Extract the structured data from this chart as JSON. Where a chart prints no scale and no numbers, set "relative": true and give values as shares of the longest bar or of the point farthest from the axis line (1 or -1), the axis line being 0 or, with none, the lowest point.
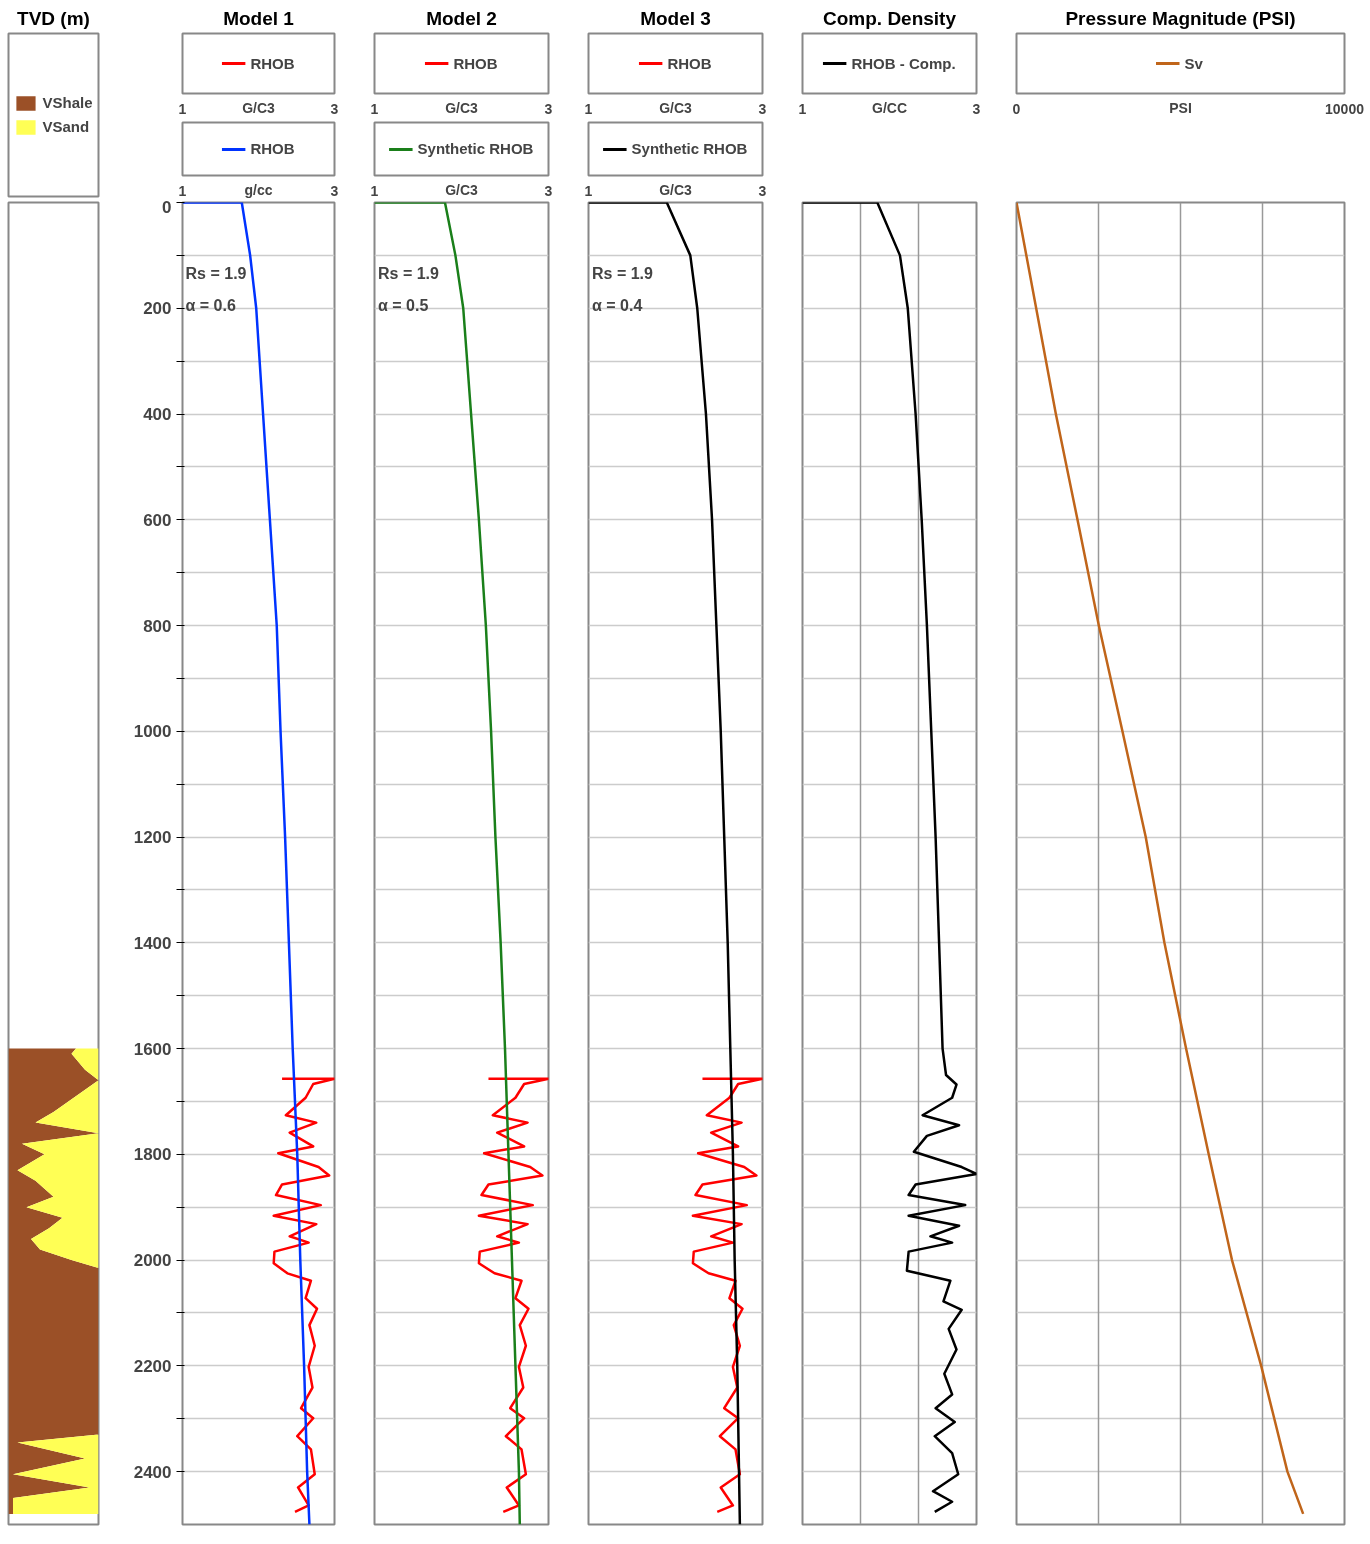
{
  "chart_data": [
    {
      "type": "area",
      "title": "TVD (m)",
      "orientation": "horizontal",
      "stacked": true,
      "relative": true,
      "ylim": [
        2500,
        0
      ],
      "tick_labels": false,
      "legend": "top",
      "series": [
        {
          "name": "VShale",
          "color": "#9b5027",
          "x": [
            1600,
            1610,
            1640,
            1660,
            1720,
            1740,
            1760,
            1780,
            1800,
            1830,
            1850,
            1880,
            1900,
            1920,
            1940,
            1960,
            1980,
            2000,
            2015,
            2330,
            2345,
            2375,
            2405,
            2430,
            2450,
            2480
          ],
          "values": [
            0.75,
            0.7,
            0.85,
            1,
            0.5,
            0.3,
            1,
            0.15,
            0.4,
            0.1,
            0.3,
            0.5,
            0.2,
            0.6,
            0.45,
            0.25,
            0.35,
            0.7,
            1,
            1,
            0.1,
            0.85,
            0.05,
            0.9,
            0.05,
            0.05
          ]
        },
        {
          "name": "VSand",
          "color": "#ffff55",
          "x": [
            1600,
            1610,
            1640,
            1660,
            1720,
            1740,
            1760,
            1780,
            1800,
            1830,
            1850,
            1880,
            1900,
            1920,
            1940,
            1960,
            1980,
            2000,
            2015,
            2330,
            2345,
            2375,
            2405,
            2430,
            2450,
            2480
          ],
          "values": [
            0.25,
            0.3,
            0.15,
            0,
            0.5,
            0.7,
            0,
            0.85,
            0.6,
            0.9,
            0.7,
            0.5,
            0.8,
            0.4,
            0.55,
            0.75,
            0.65,
            0.3,
            0,
            0,
            0.9,
            0.15,
            0.95,
            0.1,
            0.95,
            0.95
          ]
        }
      ]
    },
    {
      "type": "line",
      "title": "Model 1",
      "orientation": "horizontal",
      "xlabel": "G/C3",
      "xlim": [
        1,
        3
      ],
      "xticks": [
        1,
        3
      ],
      "x2label": "g/cc",
      "x2lim": [
        1,
        3
      ],
      "x2ticks": [
        1,
        3
      ],
      "ylim": [
        2500,
        0
      ],
      "yticks": [
        0,
        {
          "value": 100,
          "label": null
        },
        200,
        {
          "value": 300,
          "label": null
        },
        400,
        {
          "value": 500,
          "label": null
        },
        600,
        {
          "value": 700,
          "label": null
        },
        800,
        {
          "value": 900,
          "label": null
        },
        1000,
        {
          "value": 1100,
          "label": null
        },
        1200,
        {
          "value": 1300,
          "label": null
        },
        1400,
        {
          "value": 1500,
          "label": null
        },
        1600,
        {
          "value": 1700,
          "label": null
        },
        1800,
        {
          "value": 1900,
          "label": null
        },
        2000,
        {
          "value": 2100,
          "label": null
        },
        2200,
        {
          "value": 2300,
          "label": null
        },
        2400
      ],
      "grid": "y",
      "legend": "top",
      "annotations": [
        "Rs = 1.9",
        "α = 0.6"
      ],
      "series": [
        {
          "name": "RHOB",
          "color": "#ff0000",
          "values": [
            2.31,
            3.0,
            2.72,
            2.62,
            2.36,
            2.76,
            2.41,
            2.72,
            2.26,
            2.79,
            2.93,
            2.31,
            2.23,
            2.82,
            2.2,
            2.76,
            2.41,
            2.66,
            2.21,
            2.2,
            2.38,
            2.69,
            2.62,
            2.77,
            2.67,
            2.74,
            2.66,
            2.71,
            2.56,
            2.72,
            2.51,
            2.69,
            2.74,
            2.52,
            2.66,
            2.48
          ],
          "x": [
            1657,
            1657,
            1667,
            1693,
            1726,
            1740,
            1759,
            1785,
            1798,
            1824,
            1840,
            1857,
            1877,
            1896,
            1916,
            1932,
            1955,
            1967,
            1984,
            2006,
            2025,
            2039,
            2072,
            2092,
            2123,
            2162,
            2202,
            2241,
            2280,
            2299,
            2333,
            2358,
            2405,
            2430,
            2464,
            2476
          ]
        },
        {
          "name": "RHOB",
          "color": "#0033ff",
          "axis": "x2",
          "values": [
            1,
            1.78,
            1.89,
            1.97,
            2.06,
            2.15,
            2.24,
            2.29,
            2.35,
            2.4,
            2.45,
            2.51,
            2.55,
            2.6,
            2.64,
            2.67
          ],
          "x": [
            0,
            0,
            100,
            200,
            400,
            600,
            800,
            1000,
            1200,
            1400,
            1600,
            1800,
            2000,
            2200,
            2400,
            2500
          ]
        }
      ]
    },
    {
      "type": "line",
      "title": "Model 2",
      "orientation": "horizontal",
      "xlabel": "G/C3",
      "xlim": [
        1,
        3
      ],
      "xticks": [
        1,
        3
      ],
      "x2label": "G/C3",
      "x2lim": [
        1,
        3
      ],
      "x2ticks": [
        1,
        3
      ],
      "ylim": [
        2500,
        0
      ],
      "yticks": [
        0,
        {
          "value": 100,
          "label": null
        },
        {
          "value": 200,
          "label": null
        },
        {
          "value": 300,
          "label": null
        },
        {
          "value": 400,
          "label": null
        },
        {
          "value": 500,
          "label": null
        },
        {
          "value": 600,
          "label": null
        },
        {
          "value": 700,
          "label": null
        },
        {
          "value": 800,
          "label": null
        },
        {
          "value": 900,
          "label": null
        },
        {
          "value": 1000,
          "label": null
        },
        {
          "value": 1100,
          "label": null
        },
        {
          "value": 1200,
          "label": null
        },
        {
          "value": 1300,
          "label": null
        },
        {
          "value": 1400,
          "label": null
        },
        {
          "value": 1500,
          "label": null
        },
        {
          "value": 1600,
          "label": null
        },
        {
          "value": 1700,
          "label": null
        },
        {
          "value": 1800,
          "label": null
        },
        {
          "value": 1900,
          "label": null
        },
        {
          "value": 2000,
          "label": null
        },
        {
          "value": 2100,
          "label": null
        },
        {
          "value": 2200,
          "label": null
        },
        {
          "value": 2300,
          "label": null
        },
        {
          "value": 2400,
          "label": null
        }
      ],
      "tick_labels": "x",
      "grid": "y",
      "legend": "top",
      "annotations": [
        "Rs = 1.9",
        "α = 0.5"
      ],
      "series": [
        {
          "name": "RHOB",
          "color": "#ff0000",
          "values": [
            2.31,
            3.0,
            2.72,
            2.62,
            2.36,
            2.76,
            2.41,
            2.72,
            2.26,
            2.79,
            2.93,
            2.31,
            2.23,
            2.82,
            2.2,
            2.76,
            2.41,
            2.66,
            2.21,
            2.2,
            2.38,
            2.69,
            2.62,
            2.77,
            2.67,
            2.74,
            2.66,
            2.71,
            2.56,
            2.72,
            2.51,
            2.69,
            2.74,
            2.52,
            2.66,
            2.48
          ],
          "x": [
            1657,
            1657,
            1667,
            1693,
            1726,
            1740,
            1759,
            1785,
            1798,
            1824,
            1840,
            1857,
            1877,
            1896,
            1916,
            1932,
            1955,
            1967,
            1984,
            2006,
            2025,
            2039,
            2072,
            2092,
            2123,
            2162,
            2202,
            2241,
            2280,
            2299,
            2333,
            2358,
            2405,
            2430,
            2464,
            2476
          ]
        },
        {
          "name": "Synthetic RHOB",
          "color": "#1a7f1a",
          "axis": "x2",
          "values": [
            1,
            1.81,
            1.93,
            2.02,
            2.11,
            2.2,
            2.28,
            2.34,
            2.39,
            2.45,
            2.5,
            2.54,
            2.58,
            2.62,
            2.66,
            2.67
          ],
          "x": [
            0,
            0,
            100,
            200,
            400,
            600,
            800,
            1000,
            1200,
            1400,
            1600,
            1800,
            2000,
            2200,
            2400,
            2500
          ]
        }
      ]
    },
    {
      "type": "line",
      "title": "Model 3",
      "orientation": "horizontal",
      "xlabel": "G/C3",
      "xlim": [
        1,
        3
      ],
      "xticks": [
        1,
        3
      ],
      "x2label": "G/C3",
      "x2lim": [
        1,
        3
      ],
      "x2ticks": [
        1,
        3
      ],
      "ylim": [
        2500,
        0
      ],
      "yticks": [
        0,
        {
          "value": 100,
          "label": null
        },
        {
          "value": 200,
          "label": null
        },
        {
          "value": 300,
          "label": null
        },
        {
          "value": 400,
          "label": null
        },
        {
          "value": 500,
          "label": null
        },
        {
          "value": 600,
          "label": null
        },
        {
          "value": 700,
          "label": null
        },
        {
          "value": 800,
          "label": null
        },
        {
          "value": 900,
          "label": null
        },
        {
          "value": 1000,
          "label": null
        },
        {
          "value": 1100,
          "label": null
        },
        {
          "value": 1200,
          "label": null
        },
        {
          "value": 1300,
          "label": null
        },
        {
          "value": 1400,
          "label": null
        },
        {
          "value": 1500,
          "label": null
        },
        {
          "value": 1600,
          "label": null
        },
        {
          "value": 1700,
          "label": null
        },
        {
          "value": 1800,
          "label": null
        },
        {
          "value": 1900,
          "label": null
        },
        {
          "value": 2000,
          "label": null
        },
        {
          "value": 2100,
          "label": null
        },
        {
          "value": 2200,
          "label": null
        },
        {
          "value": 2300,
          "label": null
        },
        {
          "value": 2400,
          "label": null
        }
      ],
      "tick_labels": "x",
      "grid": "y",
      "legend": "top",
      "annotations": [
        "Rs = 1.9",
        "α = 0.4"
      ],
      "series": [
        {
          "name": "RHOB",
          "color": "#ff0000",
          "values": [
            2.31,
            3.0,
            2.72,
            2.62,
            2.36,
            2.76,
            2.41,
            2.72,
            2.26,
            2.79,
            2.93,
            2.31,
            2.23,
            2.82,
            2.2,
            2.76,
            2.41,
            2.66,
            2.21,
            2.2,
            2.38,
            2.69,
            2.62,
            2.77,
            2.67,
            2.74,
            2.66,
            2.71,
            2.56,
            2.72,
            2.51,
            2.69,
            2.74,
            2.52,
            2.66,
            2.48
          ],
          "x": [
            1657,
            1657,
            1667,
            1693,
            1726,
            1740,
            1759,
            1785,
            1798,
            1824,
            1840,
            1857,
            1877,
            1896,
            1916,
            1932,
            1955,
            1967,
            1984,
            2006,
            2025,
            2039,
            2072,
            2092,
            2123,
            2162,
            2202,
            2241,
            2280,
            2299,
            2333,
            2358,
            2405,
            2430,
            2464,
            2476
          ]
        },
        {
          "name": "Synthetic RHOB",
          "color": "#000000",
          "axis": "x2",
          "values": [
            1,
            1.9,
            2.17,
            2.25,
            2.35,
            2.42,
            2.47,
            2.52,
            2.56,
            2.6,
            2.63,
            2.66,
            2.68,
            2.71,
            2.73,
            2.74
          ],
          "x": [
            0,
            0,
            100,
            200,
            400,
            600,
            800,
            1000,
            1200,
            1400,
            1600,
            1800,
            2000,
            2200,
            2400,
            2500
          ]
        }
      ]
    },
    {
      "type": "line",
      "title": "Comp. Density",
      "orientation": "horizontal",
      "xlabel": "G/CC",
      "xlim": [
        1,
        3
      ],
      "xticks": [
        1,
        {
          "value": 1.67,
          "label": null
        },
        {
          "value": 2.33,
          "label": null
        },
        3
      ],
      "ylim": [
        2500,
        0
      ],
      "yticks": [
        0,
        {
          "value": 100,
          "label": null
        },
        {
          "value": 200,
          "label": null
        },
        {
          "value": 300,
          "label": null
        },
        {
          "value": 400,
          "label": null
        },
        {
          "value": 500,
          "label": null
        },
        {
          "value": 600,
          "label": null
        },
        {
          "value": 700,
          "label": null
        },
        {
          "value": 800,
          "label": null
        },
        {
          "value": 900,
          "label": null
        },
        {
          "value": 1000,
          "label": null
        },
        {
          "value": 1100,
          "label": null
        },
        {
          "value": 1200,
          "label": null
        },
        {
          "value": 1300,
          "label": null
        },
        {
          "value": 1400,
          "label": null
        },
        {
          "value": 1500,
          "label": null
        },
        {
          "value": 1600,
          "label": null
        },
        {
          "value": 1700,
          "label": null
        },
        {
          "value": 1800,
          "label": null
        },
        {
          "value": 1900,
          "label": null
        },
        {
          "value": 2000,
          "label": null
        },
        {
          "value": 2100,
          "label": null
        },
        {
          "value": 2200,
          "label": null
        },
        {
          "value": 2300,
          "label": null
        },
        {
          "value": 2400,
          "label": null
        }
      ],
      "tick_labels": "x",
      "grid": true,
      "legend": "top",
      "series": [
        {
          "name": "RHOB - Comp.",
          "color": "#000000",
          "values": [
            1,
            1.86,
            2.12,
            2.21,
            2.3,
            2.37,
            2.43,
            2.48,
            2.53,
            2.57,
            2.61,
            2.65,
            2.77,
            2.72,
            2.38,
            2.8,
            2.43,
            2.28,
            2.83,
            3.0,
            2.3,
            2.22,
            2.87,
            2.22,
            2.8,
            2.47,
            2.72,
            2.22,
            2.2,
            2.7,
            2.62,
            2.83,
            2.68,
            2.77,
            2.63,
            2.72,
            2.53,
            2.75,
            2.52,
            2.72,
            2.79,
            2.5,
            2.72,
            2.52
          ],
          "x": [
            0,
            0,
            100,
            200,
            400,
            600,
            800,
            1000,
            1200,
            1400,
            1600,
            1650,
            1668,
            1693,
            1726,
            1745,
            1765,
            1795,
            1824,
            1837,
            1857,
            1877,
            1896,
            1916,
            1935,
            1955,
            1967,
            1984,
            2020,
            2039,
            2078,
            2094,
            2130,
            2169,
            2215,
            2254,
            2280,
            2306,
            2333,
            2365,
            2405,
            2437,
            2457,
            2476
          ]
        }
      ]
    },
    {
      "type": "line",
      "title": "Pressure Magnitude (PSI)",
      "orientation": "horizontal",
      "xlabel": "PSI",
      "xlim": [
        0,
        10000
      ],
      "xticks": [
        0,
        {
          "value": 2500,
          "label": null
        },
        {
          "value": 5000,
          "label": null
        },
        {
          "value": 7500,
          "label": null
        },
        10000
      ],
      "ylim": [
        2500,
        0
      ],
      "yticks": [
        0,
        {
          "value": 100,
          "label": null
        },
        {
          "value": 200,
          "label": null
        },
        {
          "value": 300,
          "label": null
        },
        {
          "value": 400,
          "label": null
        },
        {
          "value": 500,
          "label": null
        },
        {
          "value": 600,
          "label": null
        },
        {
          "value": 700,
          "label": null
        },
        {
          "value": 800,
          "label": null
        },
        {
          "value": 900,
          "label": null
        },
        {
          "value": 1000,
          "label": null
        },
        {
          "value": 1100,
          "label": null
        },
        {
          "value": 1200,
          "label": null
        },
        {
          "value": 1300,
          "label": null
        },
        {
          "value": 1400,
          "label": null
        },
        {
          "value": 1500,
          "label": null
        },
        {
          "value": 1600,
          "label": null
        },
        {
          "value": 1700,
          "label": null
        },
        {
          "value": 1800,
          "label": null
        },
        {
          "value": 1900,
          "label": null
        },
        {
          "value": 2000,
          "label": null
        },
        {
          "value": 2100,
          "label": null
        },
        {
          "value": 2200,
          "label": null
        },
        {
          "value": 2300,
          "label": null
        },
        {
          "value": 2400,
          "label": null
        }
      ],
      "tick_labels": "x",
      "grid": true,
      "legend": "top",
      "series": [
        {
          "name": "Sv",
          "color": "#c0651a",
          "values": [
            0,
            600,
            1200,
            1860,
            2510,
            3230,
            3940,
            4510,
            5170,
            5860,
            6570,
            7460,
            8260,
            8740
          ],
          "x": [
            0,
            200,
            400,
            600,
            800,
            1000,
            1200,
            1400,
            1600,
            1800,
            2000,
            2200,
            2400,
            2480
          ]
        }
      ]
    }
  ]
}
